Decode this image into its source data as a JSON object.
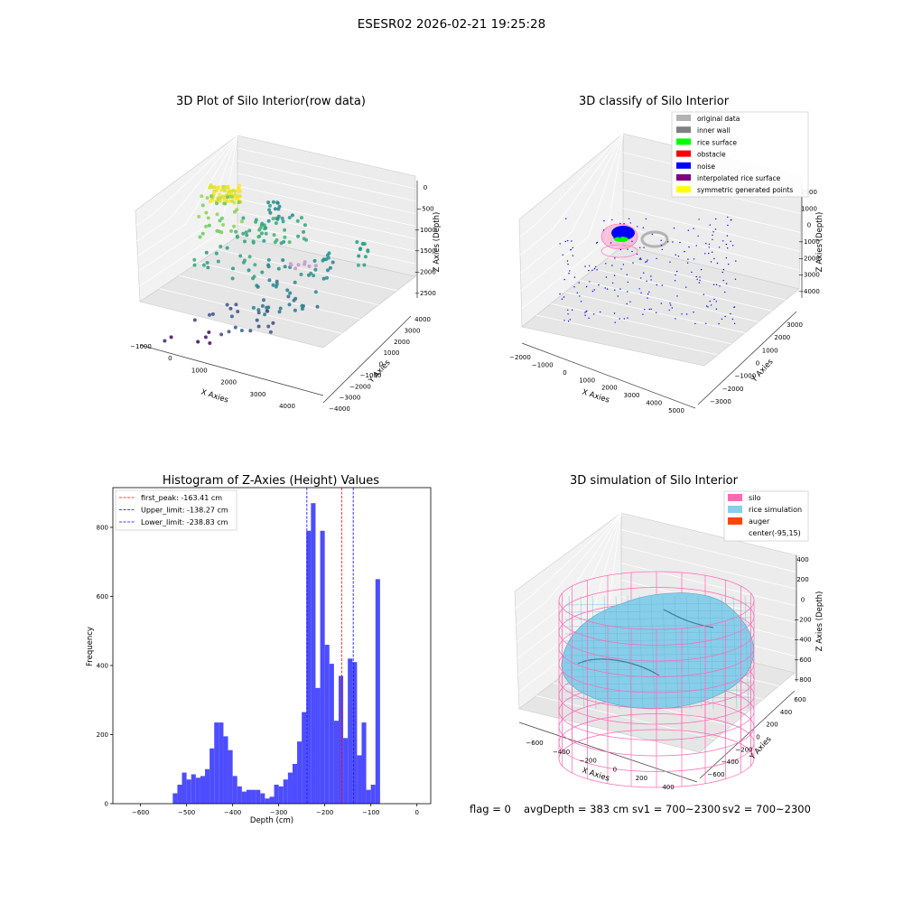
{
  "suptitle": "ESESR02 2026-02-21 19:25:28",
  "footer": {
    "flag": "flag = 0",
    "avg_depth": "avgDepth = 383 cm",
    "sv1": "sv1 = 700~2300",
    "sv2": "sv2 = 700~2300"
  },
  "colors": {
    "hist_bar": "#4d4dff",
    "first_peak": "#ff0000",
    "limits": "#0000ff",
    "original": "#b3b3b3",
    "inner_wall": "#808080",
    "rice_surface": "#00ff00",
    "obstacle": "#ff0000",
    "noise": "#0000ff",
    "interpolated": "#800080",
    "symmetric": "#ffff00",
    "silo": "#ff69b4",
    "rice_sim": "#87ceeb",
    "auger": "#ff4500"
  },
  "chart_data": [
    {
      "type": "scatter",
      "variant": "3d",
      "title": "3D Plot of Silo Interior(row data)",
      "xlabel": "X Axies",
      "ylabel": "Y Axies",
      "zlabel": "Z Axies (Depth)",
      "xticks": [
        "−1000",
        "0",
        "1000",
        "2000",
        "3000",
        "4000"
      ],
      "yticks": [
        "−4000",
        "−3000",
        "−2000",
        "−1000",
        "0",
        "1000",
        "2000",
        "3000",
        "4000"
      ],
      "zticks": [
        "−2500",
        "−2000",
        "−1500",
        "−1000",
        "−500",
        "0"
      ],
      "colormap": "viridis"
    },
    {
      "type": "scatter",
      "variant": "3d",
      "title": "3D classify of Silo Interior",
      "xlabel": "X Axies",
      "ylabel": "Y Axies",
      "zlabel": "Z Axies (Depth)",
      "xticks": [
        "−2000",
        "−1000",
        "0",
        "1000",
        "2000",
        "3000",
        "4000",
        "5000"
      ],
      "yticks": [
        "−3000",
        "−2000",
        "−1000",
        "0",
        "1000",
        "2000",
        "3000"
      ],
      "zticks": [
        "−4000",
        "−3000",
        "−2000",
        "−1000",
        "0",
        "1000",
        "2000"
      ],
      "zticks_note": "top tick partially hidden by legend shows 000",
      "legend": [
        "original data",
        "inner wall",
        "rice surface",
        "obstacle",
        "noise",
        "interpolated rice surface",
        "symmetric generated points"
      ],
      "legend_position": "top-right"
    },
    {
      "type": "bar",
      "variant": "histogram",
      "title": "Histogram of Z-Axies (Height) Values",
      "xlabel": "Depth (cm)",
      "ylabel": "Frequency",
      "xlim": [
        -660,
        30
      ],
      "ylim": [
        0,
        915
      ],
      "xticks": [
        "−600",
        "−500",
        "−400",
        "−300",
        "−200",
        "−100",
        "0"
      ],
      "yticks": [
        "0",
        "200",
        "400",
        "600",
        "800"
      ],
      "bin_edges_start": -530,
      "bin_width": 10,
      "values": [
        30,
        55,
        90,
        70,
        85,
        75,
        80,
        100,
        160,
        235,
        235,
        195,
        155,
        80,
        50,
        35,
        40,
        40,
        40,
        30,
        15,
        20,
        55,
        50,
        70,
        90,
        115,
        180,
        265,
        790,
        870,
        335,
        790,
        460,
        405,
        240,
        370,
        190,
        420,
        410,
        140,
        235,
        40,
        55,
        650
      ],
      "vlines": [
        {
          "x": -163.41,
          "label": "first_peak: -163.41 cm"
        },
        {
          "x": -138.27,
          "label": "Upper_limit: -138.27 cm"
        },
        {
          "x": -238.83,
          "label": "Lower_limit: -238.83 cm"
        }
      ],
      "legend_position": "top-left"
    },
    {
      "type": "area",
      "variant": "3d-surface",
      "title": "3D simulation of Silo Interior",
      "xlabel": "X Axies",
      "ylabel": "Y Axies",
      "zlabel": "Z Axies (Depth)",
      "xticks": [
        "−600",
        "−400",
        "−200",
        "0",
        "200",
        "400"
      ],
      "yticks": [
        "−600",
        "−400",
        "−200",
        "0",
        "200",
        "400",
        "600"
      ],
      "zticks": [
        "−800",
        "−600",
        "−400",
        "−200",
        "0",
        "200",
        "400"
      ],
      "legend": [
        "silo",
        "rice simulation",
        "auger",
        "center(-95,15)"
      ],
      "legend_position": "top-right"
    }
  ]
}
